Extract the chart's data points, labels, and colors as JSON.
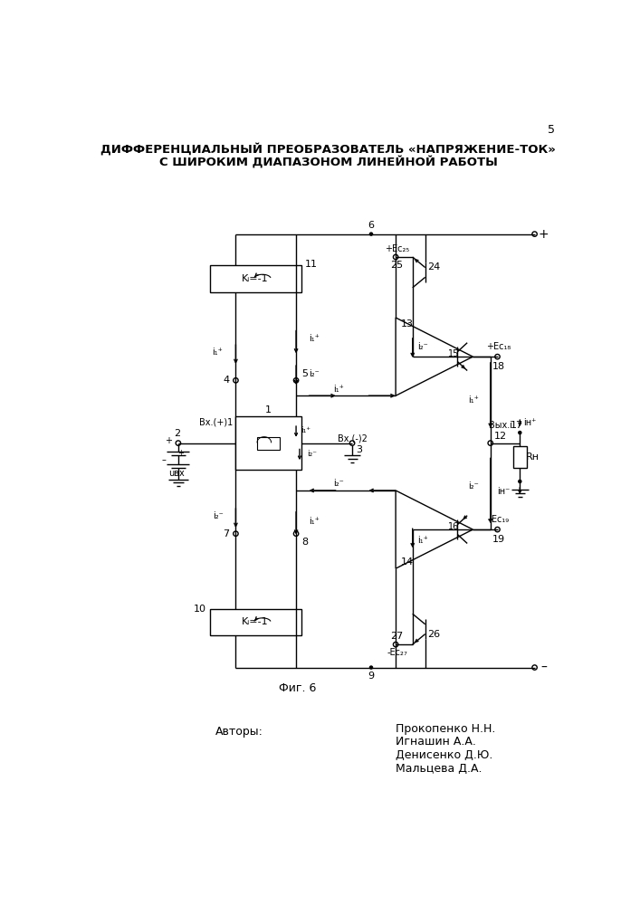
{
  "title_line1": "ДИФФЕРЕНЦИАЛЬНЫЙ ПРЕОБРАЗОВАТЕЛЬ «НАПРЯЖЕНИЕ-ТОК»",
  "title_line2": "С ШИРОКИМ ДИАПАЗОНОМ ЛИНЕЙНОЙ РАБОТЫ",
  "fig_label": "Фиг. 6",
  "page_number": "5",
  "authors_label": "Авторы:",
  "authors": [
    "Прокопенко Н.Н.",
    "Игнашин А.А.",
    "Денисенко Д.Ю.",
    "Мальцева Д.А."
  ],
  "bg_color": "#ffffff",
  "lc": "#000000"
}
